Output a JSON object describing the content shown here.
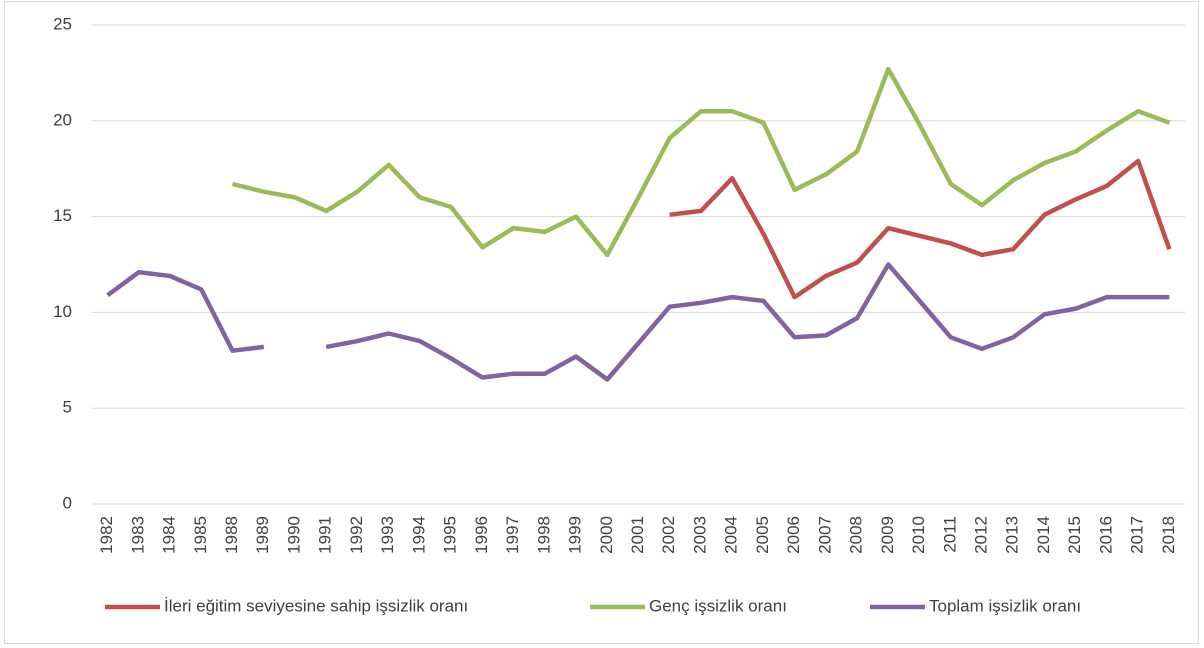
{
  "chart_data": {
    "type": "line",
    "categories": [
      "1982",
      "1983",
      "1984",
      "1985",
      "1988",
      "1989",
      "1990",
      "1991",
      "1992",
      "1993",
      "1994",
      "1995",
      "1996",
      "1997",
      "1998",
      "1999",
      "2000",
      "2001",
      "2002",
      "2003",
      "2004",
      "2005",
      "2006",
      "2007",
      "2008",
      "2009",
      "2010",
      "2011",
      "2012",
      "2013",
      "2014",
      "2015",
      "2016",
      "2017",
      "2018"
    ],
    "series": [
      {
        "name": "İleri eğitim seviyesine sahip işsizlik oranı",
        "color": "#c0504d",
        "values": [
          null,
          null,
          null,
          null,
          null,
          null,
          null,
          null,
          null,
          null,
          null,
          null,
          null,
          null,
          null,
          null,
          null,
          null,
          15.1,
          15.3,
          17.0,
          14.1,
          10.8,
          11.9,
          12.6,
          14.4,
          14.0,
          13.6,
          13.0,
          13.3,
          15.1,
          15.9,
          16.6,
          17.9,
          13.3
        ]
      },
      {
        "name": "Genç işsizlik oranı",
        "color": "#9bbb59",
        "values": [
          null,
          null,
          null,
          null,
          16.7,
          16.3,
          16.0,
          15.3,
          16.3,
          17.7,
          16.0,
          15.5,
          13.4,
          14.4,
          14.2,
          15.0,
          13.0,
          16.0,
          19.1,
          20.5,
          20.5,
          19.9,
          16.4,
          17.2,
          18.4,
          22.7,
          19.8,
          16.7,
          15.6,
          16.9,
          17.8,
          18.4,
          19.5,
          20.5,
          19.9
        ]
      },
      {
        "name": "Toplam işsizlik oranı",
        "color": "#8064a2",
        "values": [
          10.9,
          12.1,
          11.9,
          11.2,
          8.0,
          8.2,
          null,
          8.2,
          8.5,
          8.9,
          8.5,
          7.6,
          6.6,
          6.8,
          6.8,
          7.7,
          6.5,
          8.4,
          10.3,
          10.5,
          10.8,
          10.6,
          8.7,
          8.8,
          9.7,
          12.5,
          10.6,
          8.7,
          8.1,
          8.7,
          9.9,
          10.2,
          10.8,
          10.8,
          10.8
        ]
      }
    ],
    "ylim": [
      0,
      25
    ],
    "yticks": [
      0,
      5,
      10,
      15,
      20,
      25
    ],
    "grid": true,
    "legend": "bottom"
  }
}
